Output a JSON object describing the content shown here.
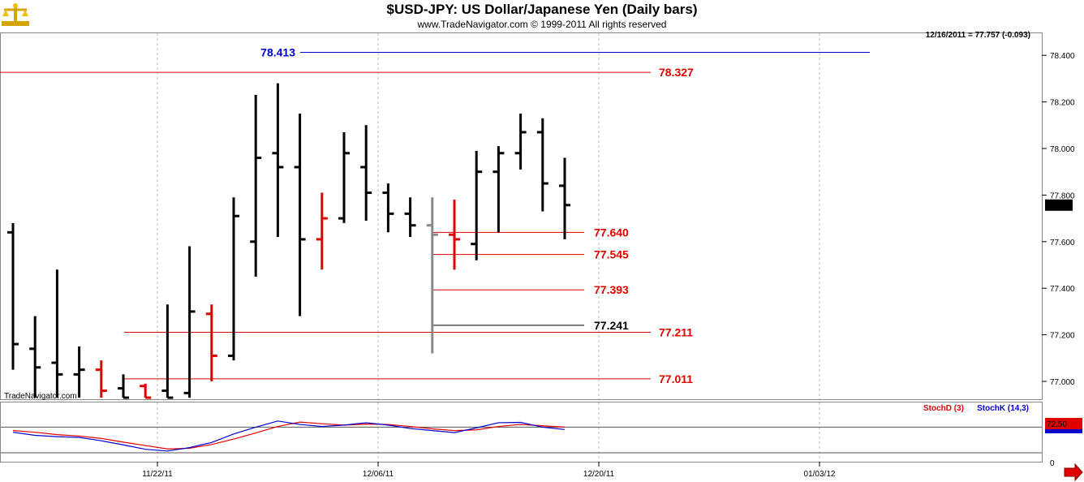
{
  "header": {
    "title": "$USD-JPY:  US Dollar/Japanese Yen  (Daily bars)",
    "subtitle": "www.TradeNavigator.com © 1999-2011 All rights reserved"
  },
  "info": {
    "last_bar": "12/16/2011 = 77.757 (-0.093)"
  },
  "watermark": "TradeNavigator.com",
  "chart_data": [
    {
      "type": "ohlc",
      "title": "$USD-JPY:  US Dollar/Japanese Yen  (Daily bars)",
      "ylim": [
        76.95,
        78.5
      ],
      "y_ticks": [
        "78.400",
        "78.200",
        "78.000",
        "77.800",
        "77.600",
        "77.400",
        "77.200",
        "77.000"
      ],
      "x_ticks": [
        "11/22/11",
        "12/06/11",
        "12/20/11",
        "01/03/12"
      ],
      "last_price_label": "77.757",
      "bars": [
        {
          "open": 77.64,
          "high": 77.68,
          "low": 77.05,
          "close": 77.16,
          "color": "#000000"
        },
        {
          "open": 77.14,
          "high": 77.28,
          "low": 76.93,
          "close": 77.06,
          "color": "#000000"
        },
        {
          "open": 77.08,
          "high": 77.48,
          "low": 76.93,
          "close": 77.03,
          "color": "#000000"
        },
        {
          "open": 77.03,
          "high": 77.15,
          "low": 76.93,
          "close": 77.05,
          "color": "#000000"
        },
        {
          "open": 77.05,
          "high": 77.09,
          "low": 76.93,
          "close": 76.96,
          "color": "#e00000"
        },
        {
          "open": 76.97,
          "high": 77.03,
          "low": 76.93,
          "close": 76.93,
          "color": "#000000"
        },
        {
          "open": 76.98,
          "high": 76.99,
          "low": 76.93,
          "close": 76.93,
          "color": "#e00000"
        },
        {
          "open": 76.96,
          "high": 77.33,
          "low": 76.93,
          "close": 76.93,
          "color": "#000000"
        },
        {
          "open": 76.95,
          "high": 77.58,
          "low": 76.93,
          "close": 77.3,
          "color": "#000000"
        },
        {
          "open": 77.29,
          "high": 77.33,
          "low": 77.0,
          "close": 77.11,
          "color": "#e00000"
        },
        {
          "open": 77.11,
          "high": 77.79,
          "low": 77.09,
          "close": 77.71,
          "color": "#000000"
        },
        {
          "open": 77.6,
          "high": 78.23,
          "low": 77.45,
          "close": 77.96,
          "color": "#000000"
        },
        {
          "open": 77.98,
          "high": 78.28,
          "low": 77.62,
          "close": 77.92,
          "color": "#000000"
        },
        {
          "open": 77.92,
          "high": 78.15,
          "low": 77.28,
          "close": 77.61,
          "color": "#000000"
        },
        {
          "open": 77.61,
          "high": 77.81,
          "low": 77.48,
          "close": 77.7,
          "color": "#e00000"
        },
        {
          "open": 77.7,
          "high": 78.07,
          "low": 77.68,
          "close": 77.98,
          "color": "#000000"
        },
        {
          "open": 77.92,
          "high": 78.1,
          "low": 77.69,
          "close": 77.81,
          "color": "#000000"
        },
        {
          "open": 77.81,
          "high": 77.85,
          "low": 77.64,
          "close": 77.72,
          "color": "#000000"
        },
        {
          "open": 77.72,
          "high": 77.79,
          "low": 77.62,
          "close": 77.67,
          "color": "#000000"
        },
        {
          "open": 77.67,
          "high": 77.79,
          "low": 77.12,
          "close": 77.63,
          "color": "#888888"
        },
        {
          "open": 77.63,
          "high": 77.78,
          "low": 77.48,
          "close": 77.61,
          "color": "#e00000"
        },
        {
          "open": 77.59,
          "high": 77.99,
          "low": 77.52,
          "close": 77.9,
          "color": "#000000"
        },
        {
          "open": 77.9,
          "high": 78.01,
          "low": 77.64,
          "close": 77.98,
          "color": "#000000"
        },
        {
          "open": 77.98,
          "high": 78.15,
          "low": 77.91,
          "close": 78.07,
          "color": "#000000"
        },
        {
          "open": 78.07,
          "high": 78.13,
          "low": 77.73,
          "close": 77.85,
          "color": "#000000"
        },
        {
          "open": 77.84,
          "high": 77.96,
          "low": 77.61,
          "close": 77.757,
          "color": "#000000"
        }
      ],
      "levels": [
        {
          "value": 78.413,
          "label": "78.413",
          "color": "#0000cc",
          "span": "blue-long"
        },
        {
          "value": 78.327,
          "label": "78.327",
          "color": "#e00000",
          "span": "full"
        },
        {
          "value": 77.64,
          "label": "77.640",
          "color": "#e00000",
          "span": "short"
        },
        {
          "value": 77.545,
          "label": "77.545",
          "color": "#e00000",
          "span": "short"
        },
        {
          "value": 77.393,
          "label": "77.393",
          "color": "#e00000",
          "span": "short"
        },
        {
          "value": 77.241,
          "label": "77.241",
          "color": "#000000",
          "span": "short"
        },
        {
          "value": 77.211,
          "label": "77.211",
          "color": "#e00000",
          "span": "mid"
        },
        {
          "value": 77.011,
          "label": "77.011",
          "color": "#e00000",
          "span": "mid"
        }
      ]
    },
    {
      "type": "line",
      "ylim": [
        0,
        100
      ],
      "series": [
        {
          "name": "StochD (3)",
          "color": "#e00000",
          "values": [
            70,
            65,
            58,
            54,
            47,
            36,
            26,
            16,
            18,
            29,
            45,
            63,
            82,
            95,
            90,
            86,
            89,
            88,
            82,
            75,
            70,
            72,
            82,
            88,
            84,
            80
          ]
        },
        {
          "name": "StochK (14,3)",
          "color": "#0000cc",
          "values": [
            65,
            56,
            52,
            50,
            40,
            28,
            15,
            10,
            20,
            35,
            60,
            80,
            98,
            88,
            82,
            86,
            93,
            86,
            76,
            70,
            64,
            78,
            93,
            94,
            80,
            73
          ]
        }
      ],
      "last_value_label": "72.50",
      "y_ticks": [
        "0"
      ]
    }
  ],
  "colors": {
    "up_marker": "#e00000",
    "grid": "#bbbbbb",
    "arrow": "#e00000"
  }
}
